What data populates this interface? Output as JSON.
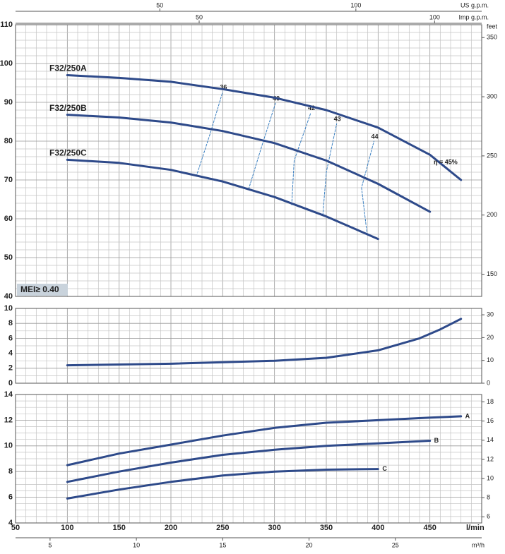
{
  "chart_data": [
    {
      "type": "line",
      "xlim": [
        50,
        500
      ],
      "ylim": [
        40,
        110
      ],
      "yticks": [
        40,
        50,
        60,
        70,
        80,
        90,
        100,
        110
      ],
      "y2label": "feet",
      "y2lim": [
        131.23,
        360.89
      ],
      "y2ticks": [
        150,
        200,
        250,
        300,
        350
      ],
      "top_axes": [
        {
          "label": "US g.p.m.",
          "lim": [
            13.21,
            132.09
          ],
          "ticks": [
            50,
            100
          ]
        },
        {
          "label": "Imp g.p.m.",
          "lim": [
            11.0,
            110.0
          ],
          "ticks": [
            50,
            100
          ]
        }
      ],
      "grid": true,
      "series": [
        {
          "name": "F32/250A",
          "color": "#2e4a8a",
          "x": [
            100,
            150,
            200,
            250,
            300,
            350,
            400,
            450,
            480
          ],
          "values": [
            97,
            96.3,
            95.3,
            93.4,
            91.2,
            88,
            83.5,
            76.5,
            70
          ]
        },
        {
          "name": "F32/250B",
          "color": "#2e4a8a",
          "x": [
            100,
            150,
            200,
            250,
            300,
            350,
            400,
            450
          ],
          "values": [
            86.8,
            86.1,
            84.8,
            82.6,
            79.5,
            75,
            69,
            61.8
          ]
        },
        {
          "name": "F32/250C",
          "color": "#2e4a8a",
          "x": [
            100,
            150,
            200,
            250,
            300,
            350,
            400
          ],
          "values": [
            75.2,
            74.4,
            72.6,
            69.6,
            65.6,
            60.6,
            54.8
          ]
        }
      ],
      "efficiency_curves": [
        {
          "name": "36",
          "color": "#3a7fc1",
          "x": [
            224.5,
            238,
            250
          ],
          "values": [
            70.9,
            82,
            92.7
          ]
        },
        {
          "name": "40",
          "color": "#3a7fc1",
          "x": [
            275,
            288,
            301
          ],
          "values": [
            67.6,
            79,
            89.8
          ]
        },
        {
          "name": "42",
          "color": "#3a7fc1",
          "x": [
            316.6,
            319,
            335
          ],
          "values": [
            63.6,
            75,
            87.3
          ]
        },
        {
          "name": "43",
          "color": "#3a7fc1",
          "x": [
            346.6,
            350,
            360
          ],
          "values": [
            60.9,
            72,
            84.5
          ]
        },
        {
          "name": "44",
          "color": "#3a7fc1",
          "x": [
            389.5,
            384,
            396
          ],
          "values": [
            55.8,
            68,
            80
          ]
        }
      ],
      "annotation": "η = 45%",
      "badge": "MEI≥ 0.40"
    },
    {
      "type": "line",
      "xlim": [
        50,
        500
      ],
      "ylim": [
        0,
        10
      ],
      "yticks": [
        0,
        2,
        4,
        6,
        8,
        10
      ],
      "y2lim": [
        0,
        32.81
      ],
      "y2ticks": [
        0,
        10,
        20,
        30
      ],
      "grid": true,
      "series": [
        {
          "color": "#2e4a8a",
          "x": [
            100,
            200,
            300,
            350,
            400,
            440,
            460,
            480
          ],
          "values": [
            2.4,
            2.6,
            3.0,
            3.4,
            4.4,
            6.0,
            7.2,
            8.6
          ]
        }
      ]
    },
    {
      "type": "line",
      "xlim": [
        50,
        500
      ],
      "ylim": [
        4,
        14
      ],
      "yticks": [
        4,
        6,
        8,
        10,
        12,
        14
      ],
      "y2lim": [
        5.36,
        18.77
      ],
      "y2ticks": [
        6,
        8,
        10,
        12,
        14,
        16,
        18
      ],
      "xticks": [
        50,
        100,
        150,
        200,
        250,
        300,
        350,
        400,
        450
      ],
      "xlabel": "l/min",
      "bottom_axis": {
        "label": "m³/h",
        "lim": [
          3.0,
          30.0
        ],
        "ticks": [
          5,
          10,
          15,
          20,
          25
        ]
      },
      "grid": true,
      "series": [
        {
          "name": "A",
          "color": "#2e4a8a",
          "x": [
            100,
            150,
            200,
            250,
            300,
            350,
            400,
            450,
            480
          ],
          "values": [
            8.5,
            9.4,
            10.1,
            10.8,
            11.4,
            11.8,
            12.0,
            12.2,
            12.3
          ]
        },
        {
          "name": "B",
          "color": "#2e4a8a",
          "x": [
            100,
            150,
            200,
            250,
            300,
            350,
            400,
            450
          ],
          "values": [
            7.2,
            8.0,
            8.7,
            9.3,
            9.7,
            10.0,
            10.2,
            10.4
          ]
        },
        {
          "name": "C",
          "color": "#2e4a8a",
          "x": [
            100,
            150,
            200,
            250,
            300,
            350,
            400
          ],
          "values": [
            5.9,
            6.6,
            7.2,
            7.7,
            8.0,
            8.15,
            8.2
          ]
        }
      ]
    }
  ]
}
